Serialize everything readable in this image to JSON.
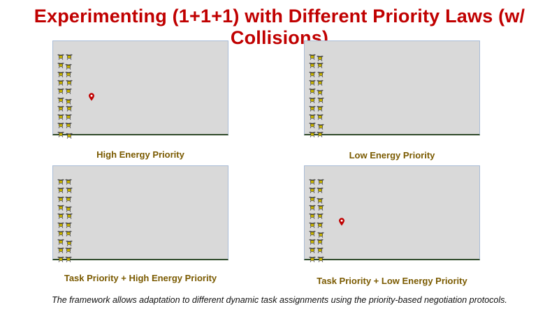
{
  "title": "Experimenting (1+1+1) with Different Priority Laws (w/ Collisions)",
  "panels": [
    {
      "caption": "High Energy Priority",
      "has_marker": true
    },
    {
      "caption": "Low Energy Priority",
      "has_marker": false
    },
    {
      "caption": "Task Priority + High Energy Priority",
      "has_marker": false
    },
    {
      "caption": "Task Priority + Low Energy Priority",
      "has_marker": true
    }
  ],
  "icons": {
    "robot": "quadrotor-drone-icon",
    "marker": "map-pin-icon"
  },
  "colors": {
    "title": "#c00000",
    "caption": "#7a5a00",
    "panel_bg": "#d9d9d9",
    "marker": "#c00000"
  },
  "footer": "The framework allows adaptation to different dynamic task assignments using the priority-based negotiation protocols."
}
